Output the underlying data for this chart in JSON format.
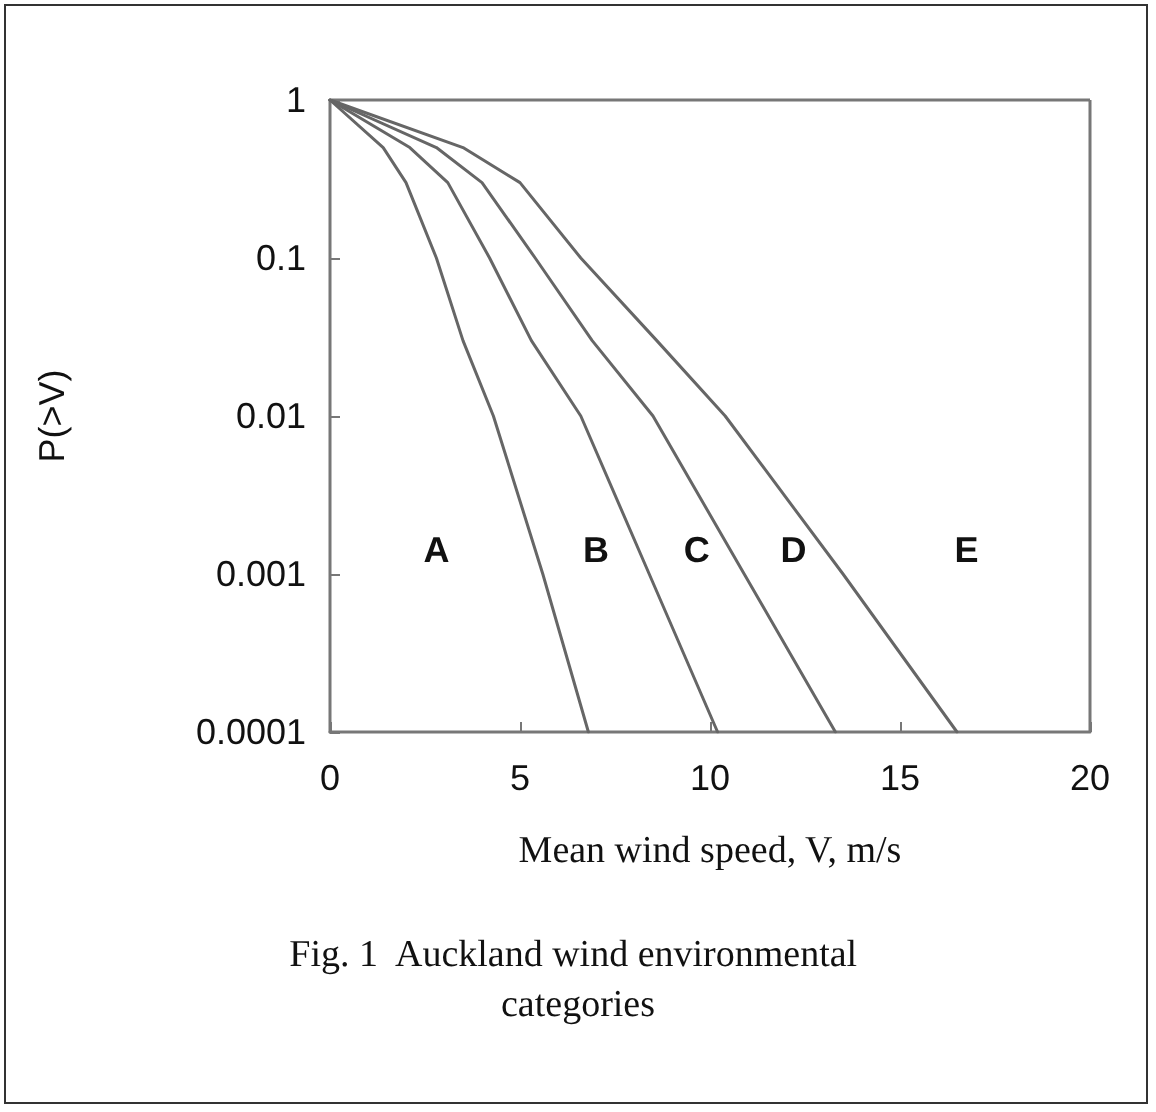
{
  "chart_data": {
    "type": "line",
    "title": "Fig. 1  Auckland wind environmental categories",
    "xlabel": "Mean wind speed, V, m/s",
    "ylabel": "P(>V)",
    "series": [
      {
        "color": "#666666",
        "x": [
          0,
          1.4,
          2.0,
          2.8,
          3.5,
          4.3,
          5.6,
          6.8
        ],
        "values": [
          1,
          0.5,
          0.3,
          0.1,
          0.03,
          0.01,
          0.001,
          0.0001
        ]
      },
      {
        "color": "#666666",
        "x": [
          0,
          2.1,
          3.1,
          4.2,
          5.3,
          6.6,
          8.4,
          10.2
        ],
        "values": [
          1,
          0.5,
          0.3,
          0.1,
          0.03,
          0.01,
          0.001,
          0.0001
        ]
      },
      {
        "color": "#666666",
        "x": [
          0,
          2.8,
          4.0,
          5.4,
          6.9,
          8.5,
          10.9,
          13.3
        ],
        "values": [
          1,
          0.5,
          0.3,
          0.1,
          0.03,
          0.01,
          0.001,
          0.0001
        ]
      },
      {
        "color": "#666666",
        "x": [
          0,
          3.5,
          5.0,
          6.6,
          8.6,
          10.4,
          13.5,
          16.5
        ],
        "values": [
          1,
          0.5,
          0.3,
          0.1,
          0.03,
          0.01,
          0.001,
          0.0001
        ]
      }
    ],
    "annotations": [
      "A",
      "B",
      "C",
      "D",
      "E"
    ],
    "xlim": [
      0,
      20
    ],
    "xticks": [
      0,
      5,
      10,
      15,
      20
    ],
    "ylim": [
      0.0001,
      1
    ],
    "yticks": [
      0.0001,
      0.001,
      0.01,
      0.1,
      1
    ],
    "log": "y",
    "grid": false,
    "marker": "none",
    "line_style": "solid"
  }
}
